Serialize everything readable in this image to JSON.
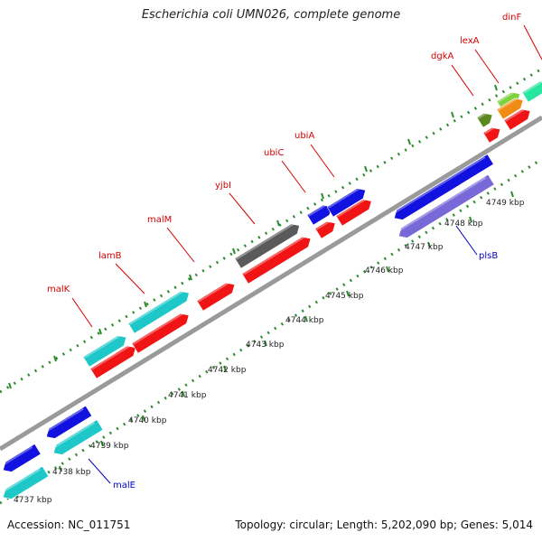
{
  "title": "Escherichia coli UMN026, complete genome",
  "footer": {
    "accession": "Accession: NC_011751",
    "summary": "Topology: circular; Length: 5,202,090 bp; Genes: 5,014"
  },
  "colors": {
    "backbone": "#8e8e8e",
    "dots": "#2e8b2e",
    "forward_label": "#d40000",
    "reverse_label": "#0000c8",
    "red": "#f01414",
    "blue": "#1212e0",
    "cyan": "#1ec8c8",
    "gray": "#5a5a5a",
    "lavender": "#7868d8",
    "olive": "#5a8a1e",
    "lightgreen": "#7ad23c",
    "orange": "#f08c14",
    "mint": "#28e6a0"
  },
  "axis": {
    "unit": "kbp",
    "ticks": [
      {
        "value": 4737,
        "label": "4737 kbp"
      },
      {
        "value": 4738,
        "label": "4738 kbp"
      },
      {
        "value": 4739,
        "label": "4739 kbp"
      },
      {
        "value": 4740,
        "label": "4740 kbp"
      },
      {
        "value": 4741,
        "label": "4741 kbp"
      },
      {
        "value": 4742,
        "label": "4742 kbp"
      },
      {
        "value": 4743,
        "label": "4743 kbp"
      },
      {
        "value": 4744,
        "label": "4744 kbp"
      },
      {
        "value": 4745,
        "label": "4745 kbp"
      },
      {
        "value": 4746,
        "label": "4746 kbp"
      },
      {
        "value": 4747,
        "label": "4747 kbp"
      },
      {
        "value": 4748,
        "label": "4748 kbp"
      },
      {
        "value": 4749,
        "label": "4749 kbp"
      }
    ]
  },
  "labels": [
    {
      "text": "malK",
      "strand": "forward"
    },
    {
      "text": "lamB",
      "strand": "forward"
    },
    {
      "text": "malM",
      "strand": "forward"
    },
    {
      "text": "yjbI",
      "strand": "forward"
    },
    {
      "text": "ubiC",
      "strand": "forward"
    },
    {
      "text": "ubiA",
      "strand": "forward"
    },
    {
      "text": "dgkA",
      "strand": "forward"
    },
    {
      "text": "lexA",
      "strand": "forward"
    },
    {
      "text": "dinF",
      "strand": "forward"
    },
    {
      "text": "malE",
      "strand": "reverse"
    },
    {
      "text": "plsB",
      "strand": "reverse"
    }
  ]
}
